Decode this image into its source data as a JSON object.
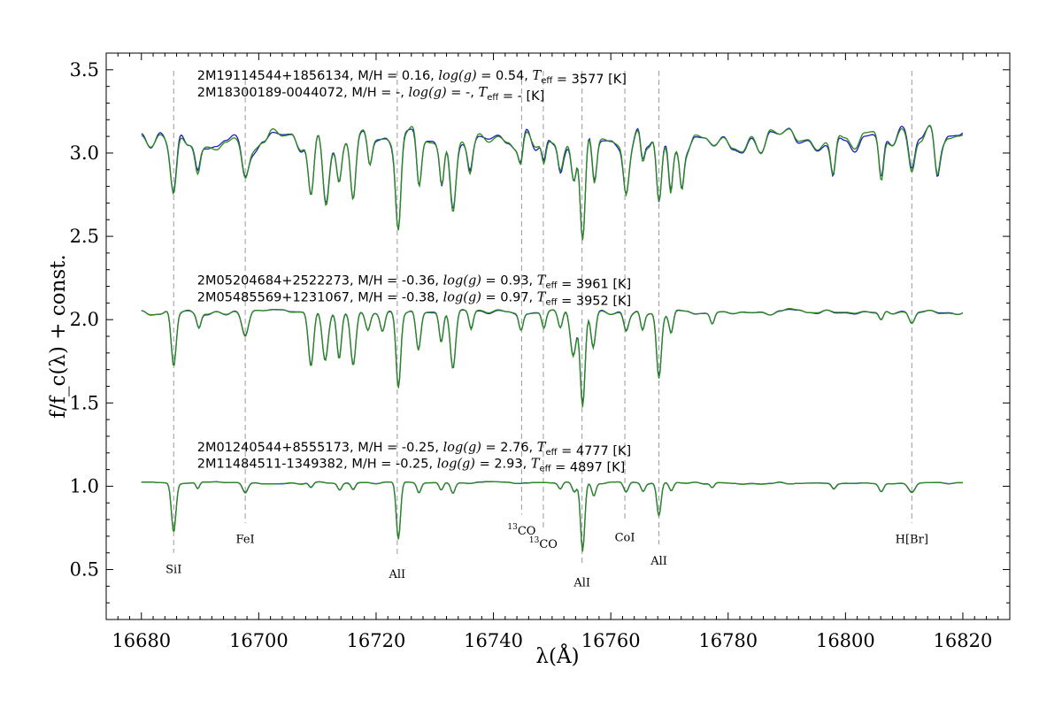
{
  "chart_data": {
    "type": "line",
    "title": "",
    "xlabel": "λ(Å)",
    "ylabel": "f/f_c(λ) + const.",
    "xlim": [
      16674,
      16828
    ],
    "ylim": [
      0.2,
      3.6
    ],
    "x_ticks": [
      "16680",
      "16700",
      "16720",
      "16740",
      "16760",
      "16780",
      "16800",
      "16820"
    ],
    "y_ticks": [
      "0.5",
      "1.0",
      "1.5",
      "2.0",
      "2.5",
      "3.0",
      "3.5"
    ],
    "colors": {
      "star_a": "#1f1fbf",
      "star_b": "#2a8a1a",
      "marker": "#9a9a9a"
    },
    "annotations": [
      {
        "text": "2M19114544+1856134, M/H = 0.16, log(g) = 0.54, T_eff = 3577 [K]",
        "x": 16689.5,
        "y": 3.44
      },
      {
        "text": "2M18300189-0044072, M/H = -, log(g) = -, T_eff = - [K]",
        "x": 16689.5,
        "y": 3.34
      },
      {
        "text": "2M05204684+2522273, M/H = -0.36, log(g) = 0.93, T_eff = 3961 [K]",
        "x": 16689.5,
        "y": 2.21
      },
      {
        "text": "2M05485569+1231067, M/H = -0.38, log(g) = 0.97, T_eff = 3952 [K]",
        "x": 16689.5,
        "y": 2.11
      },
      {
        "text": "2M01240544+8555173, M/H = -0.25, log(g) = 2.76, T_eff = 4777 [K]",
        "x": 16689.5,
        "y": 1.21
      },
      {
        "text": "2M11484511-1349382, M/H = -0.25, log(g) = 2.93, T_eff = 4897 [K]",
        "x": 16689.5,
        "y": 1.11
      }
    ],
    "line_markers": [
      {
        "label": "SiI",
        "x": 16685.5,
        "label_y": 0.48
      },
      {
        "label": "FeI",
        "x": 16697.7,
        "label_y": 0.66
      },
      {
        "label": "AlI",
        "x": 16723.6,
        "label_y": 0.45
      },
      {
        "label": "13CO",
        "x": 16744.8,
        "label_y": 0.71
      },
      {
        "label": "13CO",
        "x": 16748.5,
        "label_y": 0.63
      },
      {
        "label": "AlI",
        "x": 16755.1,
        "label_y": 0.4
      },
      {
        "label": "CoI",
        "x": 16762.4,
        "label_y": 0.67
      },
      {
        "label": "AlI",
        "x": 16768.2,
        "label_y": 0.53
      },
      {
        "label": "H[Br]",
        "x": 16811.3,
        "label_y": 0.66
      }
    ],
    "spectra": [
      {
        "baseline": 3.08,
        "noise": 0.085,
        "features": [
          [
            16685.5,
            0.32,
            0.5
          ],
          [
            16689.6,
            0.14,
            0.4
          ],
          [
            16697.7,
            0.27,
            0.6
          ],
          [
            16708.9,
            0.39,
            0.5
          ],
          [
            16711.4,
            0.38,
            0.55
          ],
          [
            16713.7,
            0.18,
            0.4
          ],
          [
            16716.1,
            0.38,
            0.45
          ],
          [
            16718.9,
            0.2,
            0.4
          ],
          [
            16723.8,
            0.52,
            0.45
          ],
          [
            16727.3,
            0.3,
            0.4
          ],
          [
            16731.2,
            0.21,
            0.35
          ],
          [
            16733.1,
            0.44,
            0.5
          ],
          [
            16736.0,
            0.15,
            0.4
          ],
          [
            16744.7,
            0.12,
            0.35
          ],
          [
            16748.6,
            0.14,
            0.35
          ],
          [
            16751.4,
            0.14,
            0.4
          ],
          [
            16753.7,
            0.33,
            0.5
          ],
          [
            16755.2,
            0.68,
            0.45
          ],
          [
            16757.2,
            0.3,
            0.4
          ],
          [
            16762.6,
            0.27,
            0.45
          ],
          [
            16765.4,
            0.16,
            0.35
          ],
          [
            16768.2,
            0.45,
            0.45
          ],
          [
            16770.2,
            0.28,
            0.35
          ],
          [
            16772.1,
            0.22,
            0.35
          ],
          [
            16797.9,
            0.23,
            0.4
          ],
          [
            16806.1,
            0.25,
            0.4
          ],
          [
            16811.3,
            0.2,
            0.5
          ],
          [
            16815.6,
            0.17,
            0.4
          ]
        ]
      },
      {
        "baseline": 2.045,
        "noise": 0.018,
        "features": [
          [
            16685.5,
            0.33,
            0.42
          ],
          [
            16689.8,
            0.08,
            0.35
          ],
          [
            16697.7,
            0.13,
            0.55
          ],
          [
            16708.9,
            0.33,
            0.45
          ],
          [
            16711.3,
            0.29,
            0.5
          ],
          [
            16713.7,
            0.28,
            0.4
          ],
          [
            16716.1,
            0.32,
            0.45
          ],
          [
            16718.6,
            0.1,
            0.4
          ],
          [
            16721.1,
            0.12,
            0.4
          ],
          [
            16723.8,
            0.45,
            0.4
          ],
          [
            16727.2,
            0.23,
            0.4
          ],
          [
            16731.1,
            0.18,
            0.35
          ],
          [
            16733.1,
            0.34,
            0.45
          ],
          [
            16736.2,
            0.11,
            0.35
          ],
          [
            16744.7,
            0.1,
            0.35
          ],
          [
            16748.6,
            0.1,
            0.35
          ],
          [
            16751.4,
            0.11,
            0.4
          ],
          [
            16753.6,
            0.26,
            0.5
          ],
          [
            16755.2,
            0.57,
            0.42
          ],
          [
            16757.0,
            0.22,
            0.4
          ],
          [
            16762.6,
            0.1,
            0.4
          ],
          [
            16765.4,
            0.11,
            0.35
          ],
          [
            16768.2,
            0.4,
            0.42
          ],
          [
            16770.3,
            0.12,
            0.35
          ],
          [
            16777.3,
            0.07,
            0.35
          ],
          [
            16806.1,
            0.06,
            0.4
          ],
          [
            16811.3,
            0.08,
            0.5
          ]
        ]
      },
      {
        "baseline": 1.02,
        "noise": 0.007,
        "features": [
          [
            16685.5,
            0.29,
            0.38
          ],
          [
            16689.6,
            0.04,
            0.3
          ],
          [
            16697.7,
            0.06,
            0.45
          ],
          [
            16708.9,
            0.03,
            0.35
          ],
          [
            16713.8,
            0.04,
            0.35
          ],
          [
            16716.1,
            0.04,
            0.35
          ],
          [
            16723.8,
            0.34,
            0.36
          ],
          [
            16727.3,
            0.06,
            0.35
          ],
          [
            16731.1,
            0.05,
            0.35
          ],
          [
            16733.1,
            0.06,
            0.35
          ],
          [
            16751.4,
            0.04,
            0.35
          ],
          [
            16753.8,
            0.06,
            0.4
          ],
          [
            16755.2,
            0.41,
            0.36
          ],
          [
            16757.1,
            0.08,
            0.35
          ],
          [
            16762.6,
            0.06,
            0.4
          ],
          [
            16765.5,
            0.05,
            0.35
          ],
          [
            16768.2,
            0.2,
            0.36
          ],
          [
            16770.3,
            0.05,
            0.35
          ],
          [
            16777.3,
            0.03,
            0.35
          ],
          [
            16798.0,
            0.03,
            0.35
          ],
          [
            16806.1,
            0.05,
            0.4
          ],
          [
            16811.3,
            0.05,
            0.55
          ]
        ]
      }
    ]
  }
}
